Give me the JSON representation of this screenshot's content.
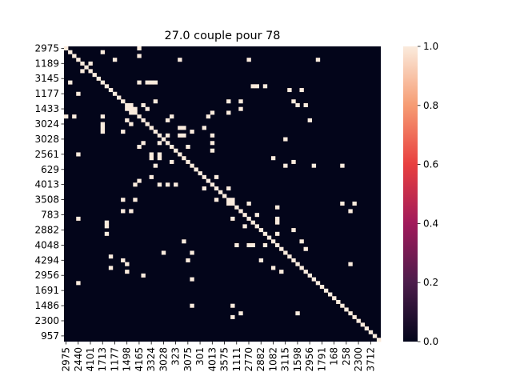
{
  "chart_data": {
    "type": "heatmap",
    "title": "27.0 couple pour 78",
    "n": 78,
    "xlabel": "",
    "ylabel": "",
    "colorbar": {
      "range": [
        0.0,
        1.0
      ],
      "ticks": [
        "0.0",
        "0.2",
        "0.4",
        "0.6",
        "0.8",
        "1.0"
      ],
      "colors": [
        "#03051a",
        "#4c1d4b",
        "#a11a5b",
        "#e83f3f",
        "#f69c73",
        "#faebdd"
      ]
    },
    "y_tick_labels": [
      {
        "index": 0,
        "label": "2975"
      },
      {
        "index": 4,
        "label": "1189"
      },
      {
        "index": 8,
        "label": "3145"
      },
      {
        "index": 12,
        "label": "1177"
      },
      {
        "index": 16,
        "label": "1433"
      },
      {
        "index": 20,
        "label": "3024"
      },
      {
        "index": 24,
        "label": "3028"
      },
      {
        "index": 28,
        "label": "2561"
      },
      {
        "index": 32,
        "label": "629"
      },
      {
        "index": 36,
        "label": "4013"
      },
      {
        "index": 40,
        "label": "3508"
      },
      {
        "index": 44,
        "label": "783"
      },
      {
        "index": 48,
        "label": "2882"
      },
      {
        "index": 52,
        "label": "4048"
      },
      {
        "index": 56,
        "label": "4294"
      },
      {
        "index": 60,
        "label": "2956"
      },
      {
        "index": 64,
        "label": "1691"
      },
      {
        "index": 68,
        "label": "1486"
      },
      {
        "index": 72,
        "label": "2300"
      },
      {
        "index": 76,
        "label": "957"
      }
    ],
    "x_tick_labels": [
      {
        "index": 0,
        "label": "2975"
      },
      {
        "index": 3,
        "label": "2440"
      },
      {
        "index": 6,
        "label": "4101"
      },
      {
        "index": 9,
        "label": "1713"
      },
      {
        "index": 12,
        "label": "1177"
      },
      {
        "index": 15,
        "label": "1498"
      },
      {
        "index": 18,
        "label": "4165"
      },
      {
        "index": 21,
        "label": "3324"
      },
      {
        "index": 24,
        "label": "3028"
      },
      {
        "index": 27,
        "label": "323"
      },
      {
        "index": 30,
        "label": "3075"
      },
      {
        "index": 33,
        "label": "301"
      },
      {
        "index": 36,
        "label": "4013"
      },
      {
        "index": 39,
        "label": "3575"
      },
      {
        "index": 42,
        "label": "1111"
      },
      {
        "index": 45,
        "label": "2770"
      },
      {
        "index": 48,
        "label": "2882"
      },
      {
        "index": 51,
        "label": "1082"
      },
      {
        "index": 54,
        "label": "3115"
      },
      {
        "index": 57,
        "label": "1598"
      },
      {
        "index": 60,
        "label": "2956"
      },
      {
        "index": 63,
        "label": "1791"
      },
      {
        "index": 66,
        "label": "168"
      },
      {
        "index": 69,
        "label": "258"
      },
      {
        "index": 72,
        "label": "2300"
      },
      {
        "index": 75,
        "label": "3712"
      }
    ],
    "diagonal_value": 1,
    "off_diagonal_ones": [
      [
        0,
        18
      ],
      [
        3,
        12
      ],
      [
        6,
        4
      ],
      [
        9,
        1
      ],
      [
        15,
        16
      ],
      [
        16,
        16
      ],
      [
        17,
        16
      ],
      [
        18,
        9
      ],
      [
        20,
        9
      ],
      [
        21,
        9
      ],
      [
        19,
        15
      ],
      [
        22,
        9
      ],
      [
        22,
        14
      ],
      [
        22,
        22
      ],
      [
        25,
        19
      ],
      [
        25,
        23
      ],
      [
        28,
        21
      ],
      [
        28,
        23
      ],
      [
        29,
        21
      ],
      [
        30,
        26
      ],
      [
        31,
        22
      ],
      [
        34,
        21
      ],
      [
        40,
        17
      ],
      [
        45,
        3
      ],
      [
        46,
        10
      ],
      [
        47,
        10
      ],
      [
        49,
        10
      ],
      [
        52,
        42
      ],
      [
        52,
        45
      ],
      [
        52,
        49
      ],
      [
        55,
        11
      ],
      [
        56,
        14
      ],
      [
        57,
        15
      ],
      [
        58,
        11
      ],
      [
        59,
        15
      ],
      [
        60,
        19
      ],
      [
        61,
        31
      ],
      [
        62,
        3
      ],
      [
        68,
        31
      ],
      [
        68,
        41
      ],
      [
        70,
        43
      ],
      [
        70,
        57
      ],
      [
        71,
        41
      ]
    ],
    "extra_ones_rc": [
      [
        2,
        18
      ],
      [
        3,
        28
      ],
      [
        6,
        4
      ],
      [
        14,
        40
      ],
      [
        14,
        43
      ],
      [
        16,
        20
      ],
      [
        16,
        43
      ],
      [
        17,
        36
      ],
      [
        18,
        35
      ],
      [
        18,
        26
      ],
      [
        23,
        29
      ],
      [
        23,
        36
      ],
      [
        24,
        54
      ],
      [
        25,
        36
      ],
      [
        27,
        36
      ],
      [
        29,
        51
      ],
      [
        30,
        56
      ],
      [
        31,
        54
      ],
      [
        34,
        37
      ],
      [
        37,
        40
      ],
      [
        40,
        41
      ],
      [
        41,
        45
      ],
      [
        44,
        47
      ],
      [
        46,
        52
      ],
      [
        48,
        56
      ],
      [
        51,
        58
      ],
      [
        53,
        59
      ]
    ]
  }
}
